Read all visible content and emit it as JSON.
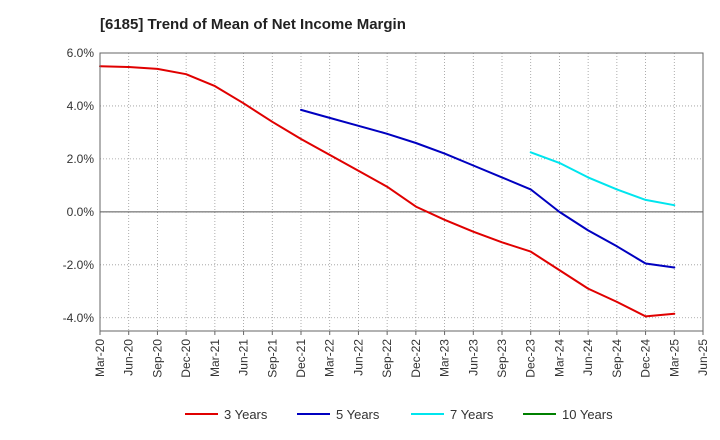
{
  "chart_data": {
    "type": "line",
    "title": "[6185]  Trend of Mean of Net Income Margin",
    "xlabel": "",
    "ylabel": "",
    "x_ticks": [
      "Mar-20",
      "Jun-20",
      "Sep-20",
      "Dec-20",
      "Mar-21",
      "Jun-21",
      "Sep-21",
      "Dec-21",
      "Mar-22",
      "Jun-22",
      "Sep-22",
      "Dec-22",
      "Mar-23",
      "Jun-23",
      "Sep-23",
      "Dec-23",
      "Mar-24",
      "Jun-24",
      "Sep-24",
      "Dec-24",
      "Mar-25",
      "Jun-25"
    ],
    "y_ticks": [
      "6.0%",
      "4.0%",
      "2.0%",
      "0.0%",
      "-2.0%",
      "-4.0%"
    ],
    "y_tick_values": [
      6,
      4,
      2,
      0,
      -2,
      -4
    ],
    "ylim": [
      -4.5,
      6.0
    ],
    "grid": true,
    "legend_position": "bottom",
    "series": [
      {
        "name": "3 Years",
        "color": "#e00000",
        "x": [
          "Mar-20",
          "Jun-20",
          "Sep-20",
          "Dec-20",
          "Mar-21",
          "Jun-21",
          "Sep-21",
          "Dec-21",
          "Mar-22",
          "Jun-22",
          "Sep-22",
          "Dec-22",
          "Mar-23",
          "Jun-23",
          "Sep-23",
          "Dec-23",
          "Mar-24",
          "Jun-24",
          "Sep-24",
          "Dec-24",
          "Mar-25"
        ],
        "values": [
          5.5,
          5.47,
          5.4,
          5.2,
          4.75,
          4.1,
          3.4,
          2.75,
          2.15,
          1.55,
          0.95,
          0.2,
          -0.3,
          -0.75,
          -1.15,
          -1.5,
          -2.2,
          -2.9,
          -3.4,
          -3.95,
          -3.85
        ]
      },
      {
        "name": "5 Years",
        "color": "#0000c0",
        "x": [
          "Dec-21",
          "Mar-22",
          "Jun-22",
          "Sep-22",
          "Dec-22",
          "Mar-23",
          "Jun-23",
          "Sep-23",
          "Dec-23",
          "Mar-24",
          "Jun-24",
          "Sep-24",
          "Dec-24",
          "Mar-25"
        ],
        "values": [
          3.85,
          3.55,
          3.25,
          2.95,
          2.6,
          2.2,
          1.75,
          1.3,
          0.85,
          0.0,
          -0.7,
          -1.3,
          -1.95,
          -2.1
        ]
      },
      {
        "name": "7 Years",
        "color": "#00e5ee",
        "x": [
          "Dec-23",
          "Mar-24",
          "Jun-24",
          "Sep-24",
          "Dec-24",
          "Mar-25"
        ],
        "values": [
          2.25,
          1.85,
          1.3,
          0.85,
          0.45,
          0.25
        ]
      },
      {
        "name": "10 Years",
        "color": "#008000",
        "x": [],
        "values": []
      }
    ]
  }
}
